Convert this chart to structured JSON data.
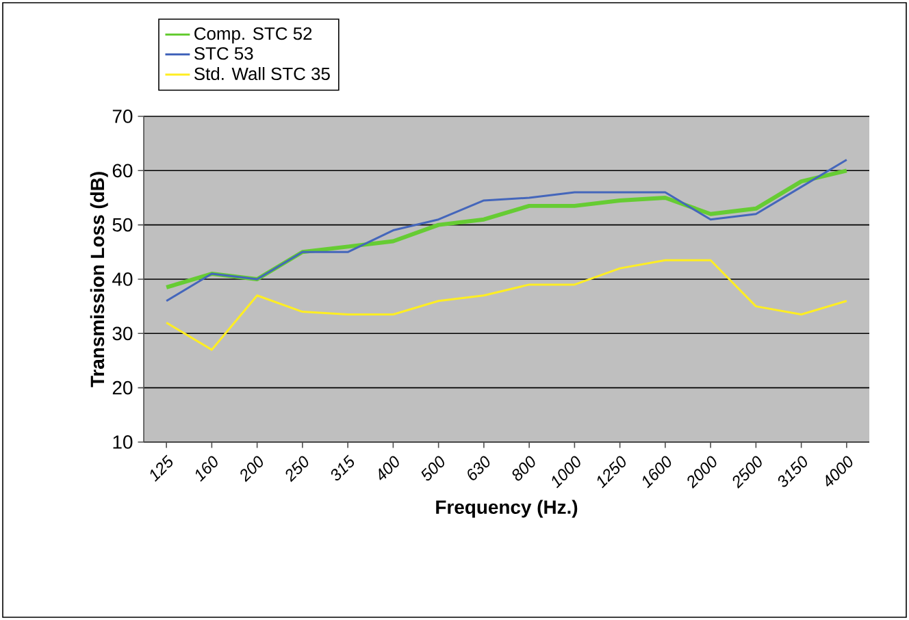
{
  "chart_data": {
    "type": "line",
    "xlabel": "Frequency (Hz.)",
    "ylabel": "Transmission Loss (dB)",
    "categories": [
      "125",
      "160",
      "200",
      "250",
      "315",
      "400",
      "500",
      "630",
      "800",
      "1000",
      "1250",
      "1600",
      "2000",
      "2500",
      "3150",
      "4000"
    ],
    "series": [
      {
        "name": "Comp. STC 52",
        "color": "#66cc33",
        "values": [
          38.5,
          41,
          40,
          45,
          46,
          47,
          50,
          51,
          53.5,
          53.5,
          54.5,
          55,
          52,
          53,
          58,
          60
        ]
      },
      {
        "name": "STC 53",
        "color": "#4466bb",
        "values": [
          36,
          41,
          40,
          45,
          45,
          49,
          51,
          54.5,
          55,
          56,
          56,
          56,
          51,
          52,
          57,
          62
        ]
      },
      {
        "name": "Std. Wall STC 35",
        "color": "#ffee22",
        "values": [
          32,
          27,
          37,
          34,
          33.5,
          33.5,
          36,
          37,
          39,
          39,
          42,
          43.5,
          43.5,
          35,
          33.5,
          36
        ]
      }
    ],
    "ylim": [
      10,
      70
    ],
    "yticks": [
      10,
      20,
      30,
      40,
      50,
      60,
      70
    ],
    "grid": "y",
    "legend": "top left",
    "line_style": "solid"
  }
}
